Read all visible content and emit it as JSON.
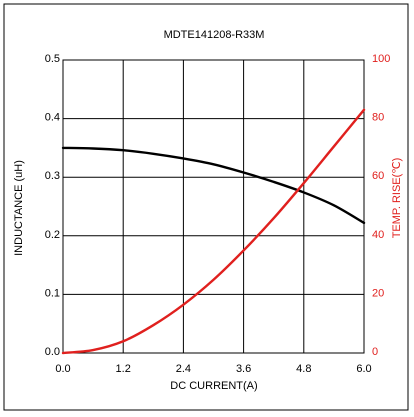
{
  "chart_data": {
    "type": "line",
    "title": "MDTE141208-R33M",
    "xlabel": "DC CURRENT(A)",
    "ylabel_left": "INDUCTANCE (uH)",
    "ylabel_right": "TEMP. RISE(℃)",
    "xlim": [
      0,
      6
    ],
    "ylim_left": [
      0,
      0.5
    ],
    "ylim_right": [
      0,
      100
    ],
    "x_ticks": [
      "0.0",
      "1.2",
      "2.4",
      "3.6",
      "4.8",
      "6.0"
    ],
    "y_left_ticks": [
      "0.0",
      "0.1",
      "0.2",
      "0.3",
      "0.4",
      "0.5"
    ],
    "y_right_ticks": [
      "0",
      "20",
      "40",
      "60",
      "80",
      "100"
    ],
    "grid": true,
    "colors": {
      "inductance": "#000000",
      "temp_rise": "#e0201e",
      "right_axis": "#e0201e"
    },
    "series": [
      {
        "axis": "left",
        "x": [
          0,
          0.6,
          1.2,
          1.8,
          2.4,
          3.0,
          3.6,
          4.2,
          4.8,
          5.4,
          6.0
        ],
        "values": [
          0.35,
          0.349,
          0.346,
          0.34,
          0.332,
          0.322,
          0.308,
          0.292,
          0.274,
          0.252,
          0.222
        ]
      },
      {
        "axis": "right",
        "x": [
          0,
          0.6,
          1.2,
          1.8,
          2.4,
          3.0,
          3.6,
          4.2,
          4.8,
          5.4,
          6.0
        ],
        "values": [
          0,
          1,
          4,
          9.5,
          16.5,
          25,
          35,
          46,
          58,
          70.5,
          83
        ]
      }
    ]
  }
}
